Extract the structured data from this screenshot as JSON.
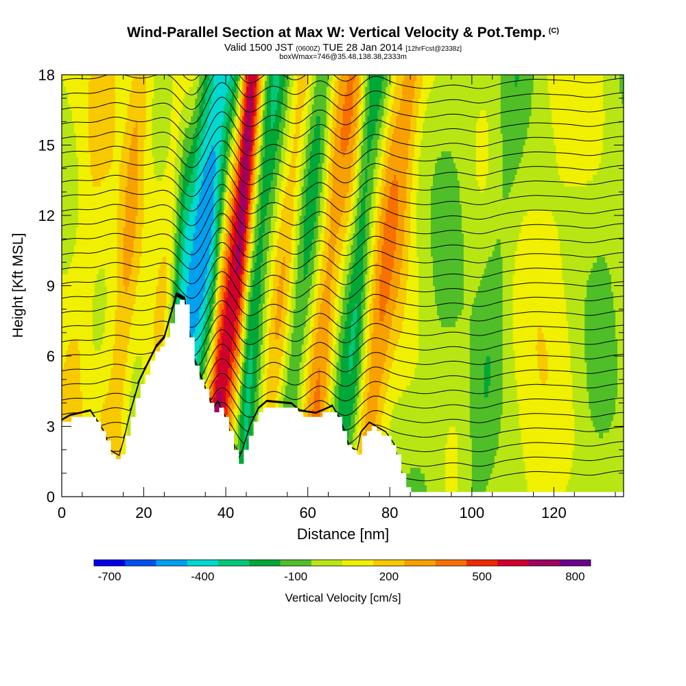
{
  "header": {
    "title": "Wind-Parallel Section at Max W: Vertical Velocity & Pot.Temp.",
    "copyright": "(C)",
    "valid_a": "Valid 1500 JST ",
    "valid_b": "(0600Z)",
    "valid_c": " TUE 28 Jan 2014 ",
    "valid_d": "[12hrFcst@2338z]",
    "box_info": "boxWmax=746@35.48,138.38,2333m"
  },
  "chart_data": {
    "type": "contour-cross-section",
    "xlabel": "Distance [nm]",
    "ylabel": "Height [Kft MSL]",
    "xlim": [
      0,
      137
    ],
    "ylim": [
      0,
      18
    ],
    "x_ticks": [
      "0",
      "20",
      "40",
      "60",
      "80",
      "100",
      "120"
    ],
    "x_tick_values": [
      0,
      20,
      40,
      60,
      80,
      100,
      120
    ],
    "y_ticks": [
      "0",
      "3",
      "6",
      "9",
      "12",
      "15",
      "18"
    ],
    "y_tick_values": [
      0,
      3,
      6,
      9,
      12,
      15,
      18
    ],
    "colorbar": {
      "label": "Vertical Velocity [cm/s]",
      "tick_labels": [
        "-700",
        "-400",
        "-100",
        "200",
        "500",
        "800"
      ],
      "tick_values": [
        -700,
        -400,
        -100,
        200,
        500,
        800
      ],
      "bins": [
        -750,
        -650,
        -550,
        -450,
        -350,
        -250,
        -150,
        -50,
        50,
        150,
        250,
        350,
        450,
        550,
        650,
        750,
        850
      ],
      "colors": [
        "#0000e6",
        "#0050f0",
        "#00a0f0",
        "#00d8d0",
        "#00c878",
        "#00a838",
        "#50be28",
        "#b8e614",
        "#f0f000",
        "#f8c800",
        "#f8a000",
        "#f87000",
        "#f02800",
        "#d0002c",
        "#a00060",
        "#6a008c"
      ]
    },
    "peak_w_cm_s": 746,
    "terrain": [
      [
        0,
        3.1
      ],
      [
        2,
        3.3
      ],
      [
        7,
        3.5
      ],
      [
        10,
        2.7
      ],
      [
        12,
        1.8
      ],
      [
        14,
        1.6
      ],
      [
        15,
        2.2
      ],
      [
        17,
        3.6
      ],
      [
        19,
        4.8
      ],
      [
        21,
        5.5
      ],
      [
        23,
        6.2
      ],
      [
        25,
        6.6
      ],
      [
        27,
        7.8
      ],
      [
        28,
        8.4
      ],
      [
        30,
        8.2
      ],
      [
        31,
        7.0
      ],
      [
        32,
        5.8
      ],
      [
        34,
        4.9
      ],
      [
        36,
        4.0
      ],
      [
        37,
        3.6
      ],
      [
        38,
        3.9
      ],
      [
        40,
        3.2
      ],
      [
        42,
        2.0
      ],
      [
        43,
        1.4
      ],
      [
        44,
        1.8
      ],
      [
        46,
        2.9
      ],
      [
        48,
        3.6
      ],
      [
        50,
        3.9
      ],
      [
        56,
        3.8
      ],
      [
        58,
        3.5
      ],
      [
        62,
        3.4
      ],
      [
        66,
        3.7
      ],
      [
        68,
        3.1
      ],
      [
        70,
        2.0
      ],
      [
        72,
        1.8
      ],
      [
        73,
        2.6
      ],
      [
        75,
        3.0
      ],
      [
        79,
        2.6
      ],
      [
        81,
        2.1
      ],
      [
        83,
        0.8
      ],
      [
        85,
        0.2
      ],
      [
        88,
        0.2
      ],
      [
        137,
        0.2
      ]
    ],
    "w_bands": [
      {
        "x": 2,
        "w": 2.5,
        "v": 100
      },
      {
        "x": 12,
        "w": 2.5,
        "v": 200
      },
      {
        "x": 25,
        "w": 2.5,
        "v": 200
      },
      {
        "x": 31,
        "w": 4,
        "v": -550
      },
      {
        "x": 38,
        "w": 2.5,
        "v": 746
      },
      {
        "x": 44,
        "w": 2.5,
        "v": -300
      },
      {
        "x": 51,
        "w": 2,
        "v": 200
      },
      {
        "x": 56,
        "w": 2.5,
        "v": -250
      },
      {
        "x": 62,
        "w": 3,
        "v": 300
      },
      {
        "x": 68,
        "w": 2.5,
        "v": -300
      },
      {
        "x": 75,
        "w": 2.5,
        "v": 300
      },
      {
        "x": 88,
        "w": 4,
        "v": -100
      },
      {
        "x": 101,
        "w": 3,
        "v": -150
      },
      {
        "x": 114,
        "w": 4,
        "v": 50
      },
      {
        "x": 128,
        "w": 4,
        "v": -100
      }
    ]
  }
}
